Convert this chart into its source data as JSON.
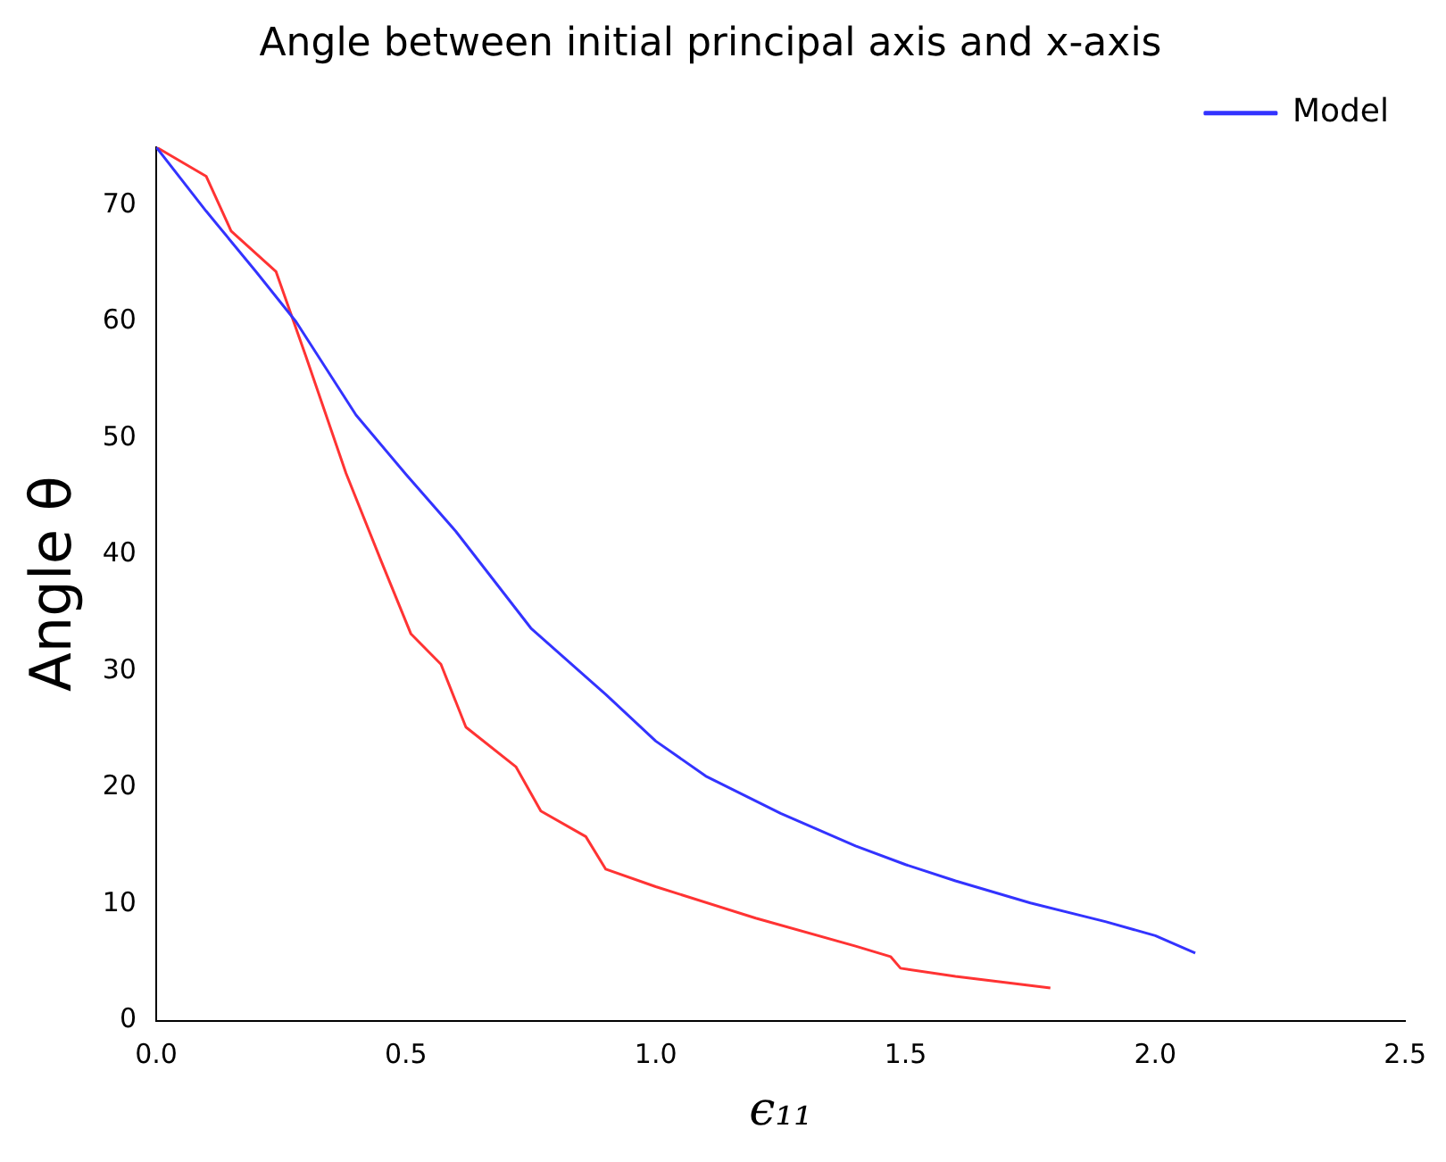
{
  "chart_data": {
    "type": "line",
    "title": "Angle between initial principal axis and x-axis",
    "xlabel": "ϵ₁₁",
    "ylabel": "Angle θ",
    "xlim": [
      0,
      2.5
    ],
    "xticks": [
      {
        "value": 0,
        "label": "0.0"
      },
      {
        "value": 0.5,
        "label": "0.5"
      },
      {
        "value": 1,
        "label": "1.0"
      },
      {
        "value": 1.5,
        "label": "1.5"
      },
      {
        "value": 2,
        "label": "2.0"
      },
      {
        "value": 2.5,
        "label": "2.5"
      }
    ],
    "ylim": [
      0,
      75
    ],
    "yticks": [
      0,
      10,
      20,
      30,
      40,
      50,
      60,
      70
    ],
    "grid": false,
    "legend": "top right",
    "marker": "none",
    "line_style": "solid",
    "series": [
      {
        "name": "Model",
        "color": "#3333ff",
        "x": [
          0,
          0.1,
          0.2,
          0.28,
          0.4,
          0.5,
          0.6,
          0.75,
          0.9,
          1.0,
          1.1,
          1.25,
          1.4,
          1.5,
          1.6,
          1.75,
          1.9,
          2.0,
          2.08
        ],
        "values": [
          75,
          69.5,
          64.3,
          60,
          52,
          46.9,
          42,
          33.7,
          28,
          24,
          21,
          17.8,
          15,
          13.4,
          12,
          10.1,
          8.5,
          7.3,
          5.8
        ]
      },
      {
        "color": "#ff3333",
        "x": [
          0,
          0.1,
          0.15,
          0.24,
          0.3,
          0.38,
          0.45,
          0.51,
          0.57,
          0.62,
          0.72,
          0.77,
          0.86,
          0.9,
          1.0,
          1.2,
          1.4,
          1.47,
          1.49,
          1.6,
          1.79
        ],
        "values": [
          75,
          72.5,
          67.8,
          64.3,
          57,
          47,
          39.5,
          33.2,
          30.6,
          25.2,
          21.8,
          18,
          15.8,
          13,
          11.5,
          8.8,
          6.4,
          5.5,
          4.5,
          3.8,
          2.8
        ]
      }
    ]
  }
}
